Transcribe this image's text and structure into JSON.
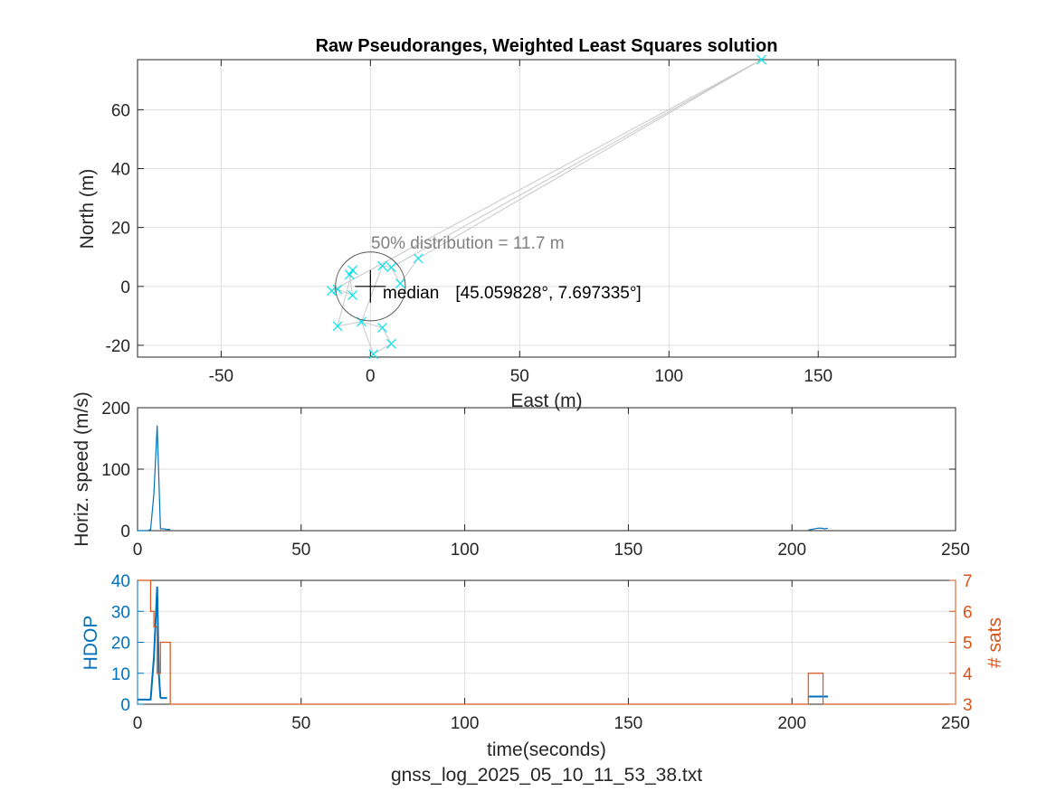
{
  "figure_footer": "gnss_log_2025_05_10_11_53_38.txt",
  "chart_data": [
    {
      "type": "scatter",
      "title": "Raw Pseudoranges, Weighted Least Squares solution",
      "xlabel": "East (m)",
      "ylabel": "North (m)",
      "xlim": [
        -78,
        196
      ],
      "ylim": [
        -24,
        77
      ],
      "xticks": [
        -50,
        0,
        50,
        100,
        150
      ],
      "yticks": [
        -20,
        0,
        20,
        40,
        60
      ],
      "grid": true,
      "marker_color": "#00e5ee",
      "trace_color": "#c8c8c8",
      "points": [
        {
          "x": -13,
          "y": -1.5
        },
        {
          "x": -11,
          "y": -1
        },
        {
          "x": -7,
          "y": 4
        },
        {
          "x": -6,
          "y": 5.5
        },
        {
          "x": -6,
          "y": -3
        },
        {
          "x": -11,
          "y": -13.5
        },
        {
          "x": -3,
          "y": -12
        },
        {
          "x": 1,
          "y": -23
        },
        {
          "x": 4,
          "y": -14
        },
        {
          "x": 7,
          "y": -19.5
        },
        {
          "x": 4,
          "y": 7
        },
        {
          "x": 7,
          "y": 6.5
        },
        {
          "x": 10,
          "y": 1
        },
        {
          "x": 16,
          "y": 9.5
        },
        {
          "x": 131,
          "y": 77
        }
      ],
      "trace_order": [
        13,
        14,
        0,
        1,
        4,
        2,
        3,
        5,
        6,
        8,
        9,
        7,
        6,
        10,
        11,
        12,
        13
      ],
      "median": {
        "x": 0,
        "y": 0,
        "label": "median",
        "coords": "[45.059828°, 7.697335°]",
        "lat": "45.059828",
        "lon": "7.697335"
      },
      "circle": {
        "radius_m": 11.7,
        "label": "50% distribution = 11.7 m"
      }
    },
    {
      "type": "line",
      "xlabel": "",
      "ylabel": "Horiz. speed (m/s)",
      "xlim": [
        0,
        250
      ],
      "ylim": [
        0,
        200
      ],
      "xticks": [
        0,
        50,
        100,
        150,
        200,
        250
      ],
      "yticks": [
        0,
        100,
        200
      ],
      "grid": true,
      "series": [
        {
          "color": "#0072bd",
          "x": [
            0,
            3,
            4,
            5,
            6,
            7,
            8,
            9,
            10
          ],
          "y": [
            0,
            0,
            2,
            60,
            171,
            3,
            3,
            2,
            2
          ]
        },
        {
          "color": "#0072bd",
          "x": [
            205,
            206,
            207,
            208,
            209,
            210,
            211
          ],
          "y": [
            1,
            2,
            3,
            4,
            4,
            3,
            4
          ]
        }
      ]
    },
    {
      "type": "line",
      "xlabel": "time(seconds)",
      "ylabel": "HDOP",
      "ylabel_right": "# sats",
      "xlim": [
        0,
        250
      ],
      "ylim": [
        0,
        40
      ],
      "ylim_right": [
        3,
        7
      ],
      "xticks": [
        0,
        50,
        100,
        150,
        200,
        250
      ],
      "yticks": [
        0,
        10,
        20,
        30,
        40
      ],
      "yticks_right": [
        3,
        4,
        5,
        6,
        7
      ],
      "grid": true,
      "left_color": "#0072bd",
      "right_color": "#d95319",
      "series": [
        {
          "name_axis": "left",
          "color": "#0072bd",
          "segments": [
            {
              "x": [
                0,
                3,
                4,
                5,
                6,
                6.5,
                7
              ],
              "y": [
                1.5,
                1.5,
                1.5,
                15,
                38,
                10,
                2
              ]
            },
            {
              "x": [
                7,
                9
              ],
              "y": [
                2,
                2
              ]
            },
            {
              "x": [
                205,
                211
              ],
              "y": [
                2.5,
                2.5
              ]
            }
          ]
        },
        {
          "name_axis": "right",
          "color": "#d95319",
          "step": true,
          "x": [
            0,
            4,
            5,
            6,
            7,
            10,
            205,
            206,
            209,
            209.5,
            248
          ],
          "y": [
            7,
            6,
            5.5,
            4,
            5,
            3,
            4,
            4,
            4,
            3,
            3
          ]
        }
      ]
    }
  ]
}
